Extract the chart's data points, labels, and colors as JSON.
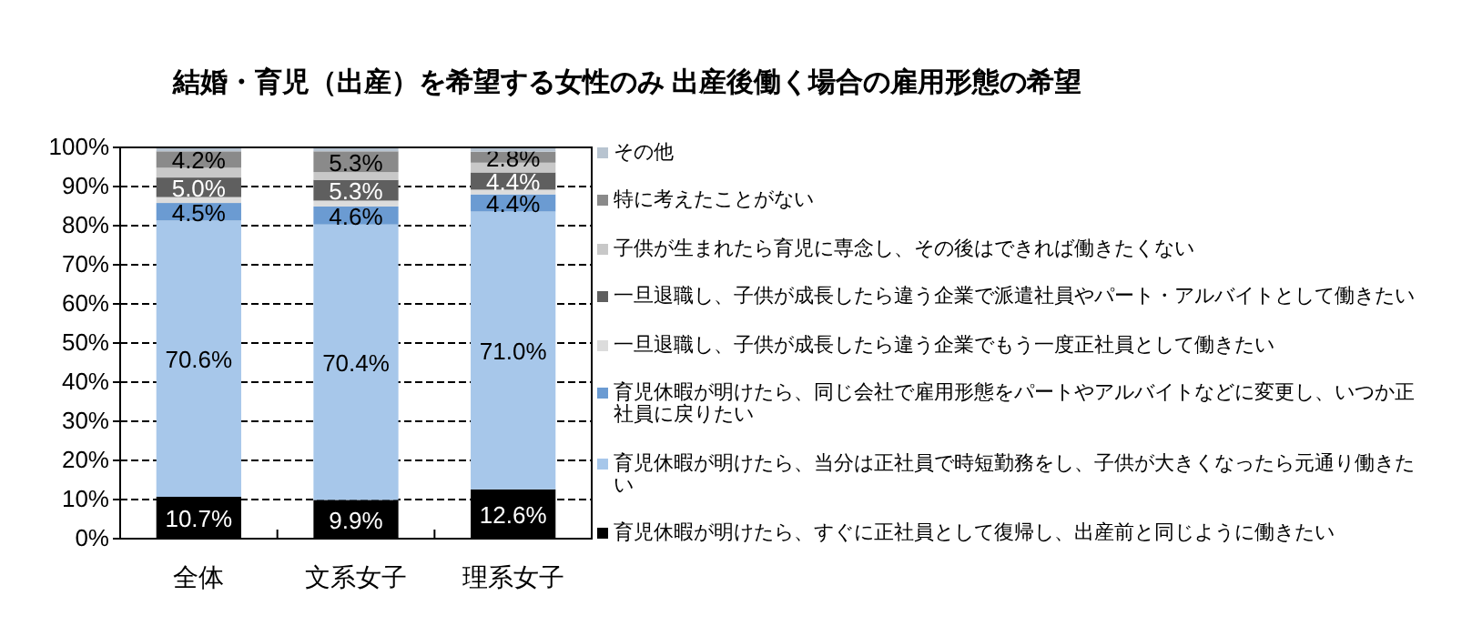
{
  "chart_data": {
    "type": "bar",
    "stacked": true,
    "title": "結婚・育児（出産）を希望する女性のみ 出産後働く場合の雇用形態の希望",
    "categories": [
      "全体",
      "文系女子",
      "理系女子"
    ],
    "ylim": [
      0,
      100
    ],
    "yticks": [
      {
        "value": 0,
        "label": "0%"
      },
      {
        "value": 10,
        "label": "10%"
      },
      {
        "value": 20,
        "label": "20%"
      },
      {
        "value": 30,
        "label": "30%"
      },
      {
        "value": 40,
        "label": "40%"
      },
      {
        "value": 50,
        "label": "50%"
      },
      {
        "value": 60,
        "label": "60%"
      },
      {
        "value": 70,
        "label": "70%"
      },
      {
        "value": 80,
        "label": "80%"
      },
      {
        "value": 90,
        "label": "90%"
      },
      {
        "value": 100,
        "label": "100%"
      }
    ],
    "grid": "y",
    "legend": "right",
    "series": [
      {
        "name": "育児休暇が明けたら、すぐに正社員として復帰し、出産前と同じように働きたい",
        "color": "#000000",
        "values": [
          10.7,
          9.9,
          12.6
        ],
        "value_labels": [
          "10.7%",
          "9.9%",
          "12.6%"
        ]
      },
      {
        "name": "育児休暇が明けたら、当分は正社員で時短勤務をし、子供が大きくなったら元通り働きたい",
        "color": "#a7c7ea",
        "values": [
          70.6,
          70.4,
          71.0
        ],
        "value_labels": [
          "70.6%",
          "70.4%",
          "71.0%"
        ]
      },
      {
        "name": "育児休暇が明けたら、同じ会社で雇用形態をパートやアルバイトなどに変更し、いつか正社員に戻りたい",
        "color": "#6b9bd2",
        "values": [
          4.5,
          4.6,
          4.4
        ],
        "value_labels": [
          "4.5%",
          "4.6%",
          "4.4%"
        ]
      },
      {
        "name": "一旦退職し、子供が成長したら違う企業でもう一度正社員として働きたい",
        "color": "#dcdcdc",
        "values": [
          1.5,
          1.5,
          1.2
        ],
        "value_labels": [
          null,
          null,
          null
        ]
      },
      {
        "name": "一旦退職し、子供が成長したら違う企業で派遣社員やパート・アルバイトとして働きたい",
        "color": "#5f5f5f",
        "values": [
          5.0,
          5.3,
          4.4
        ],
        "value_labels": [
          "5.0%",
          "5.3%",
          "4.4%"
        ]
      },
      {
        "name": "子供が生まれたら育児に専念し、その後はできれば働きたくない",
        "color": "#c8c8c8",
        "values": [
          2.5,
          2.0,
          2.5
        ],
        "value_labels": [
          null,
          null,
          null
        ]
      },
      {
        "name": "特に考えたことがない",
        "color": "#8a8a8a",
        "values": [
          4.2,
          5.3,
          2.8
        ],
        "value_labels": [
          "4.2%",
          "5.3%",
          "2.8%"
        ]
      },
      {
        "name": "その他",
        "color": "#b8c4d0",
        "values": [
          1.0,
          1.0,
          1.1
        ],
        "value_labels": [
          null,
          null,
          null
        ]
      }
    ]
  }
}
